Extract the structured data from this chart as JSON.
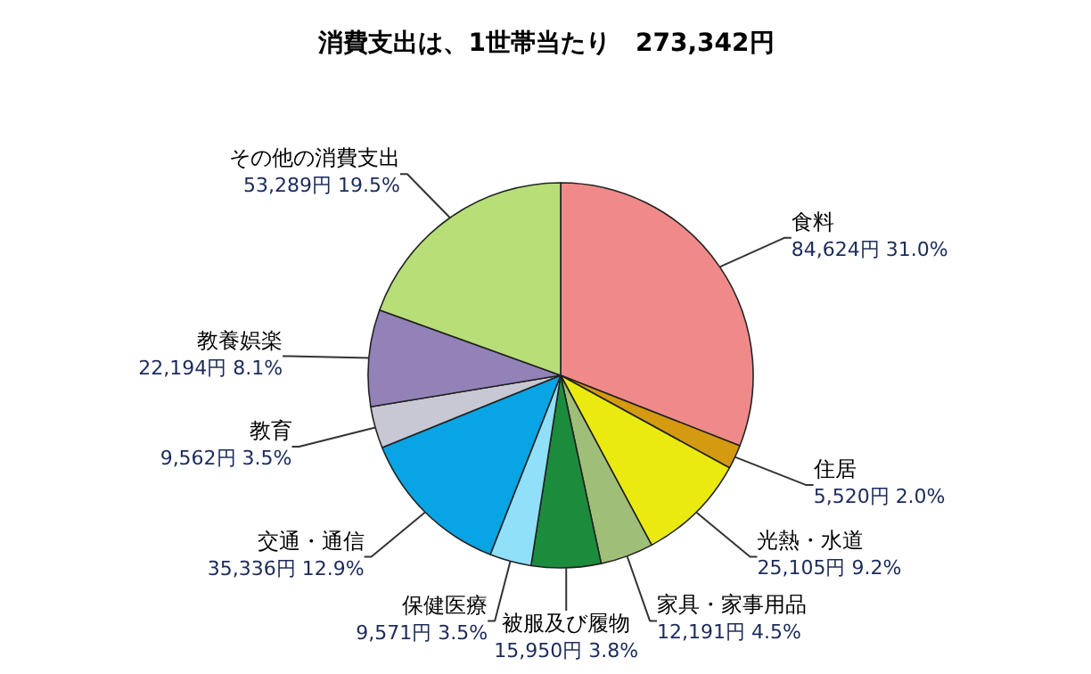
{
  "chart_data": {
    "type": "pie",
    "title": "消費支出は、1世帯当たり　273,342円",
    "categories": [
      "食料",
      "住居",
      "光熱・水道",
      "家具・家事用品",
      "被服及び履物",
      "保健医療",
      "交通・通信",
      "教育",
      "教養娯楽",
      "その他の消費支出"
    ],
    "values": [
      84624,
      5520,
      25105,
      12191,
      15950,
      9571,
      35336,
      9562,
      22194,
      53289
    ],
    "colors": [
      "#f08a8a",
      "#d49a10",
      "#eaea10",
      "#9fbf78",
      "#1b8c3c",
      "#8fe0f8",
      "#08a4e4",
      "#c8c8d4",
      "#9282b8",
      "#b8de78"
    ],
    "value_labels": [
      "84,624円 31.0%",
      "5,520円 2.0%",
      "25,105円 9.2%",
      "12,191円 4.5%",
      "15,950円 3.8%",
      "9,571円 3.5%",
      "35,336円 12.9%",
      "9,562円 3.5%",
      "22,194円 8.1%",
      "53,289円 19.5%"
    ]
  }
}
